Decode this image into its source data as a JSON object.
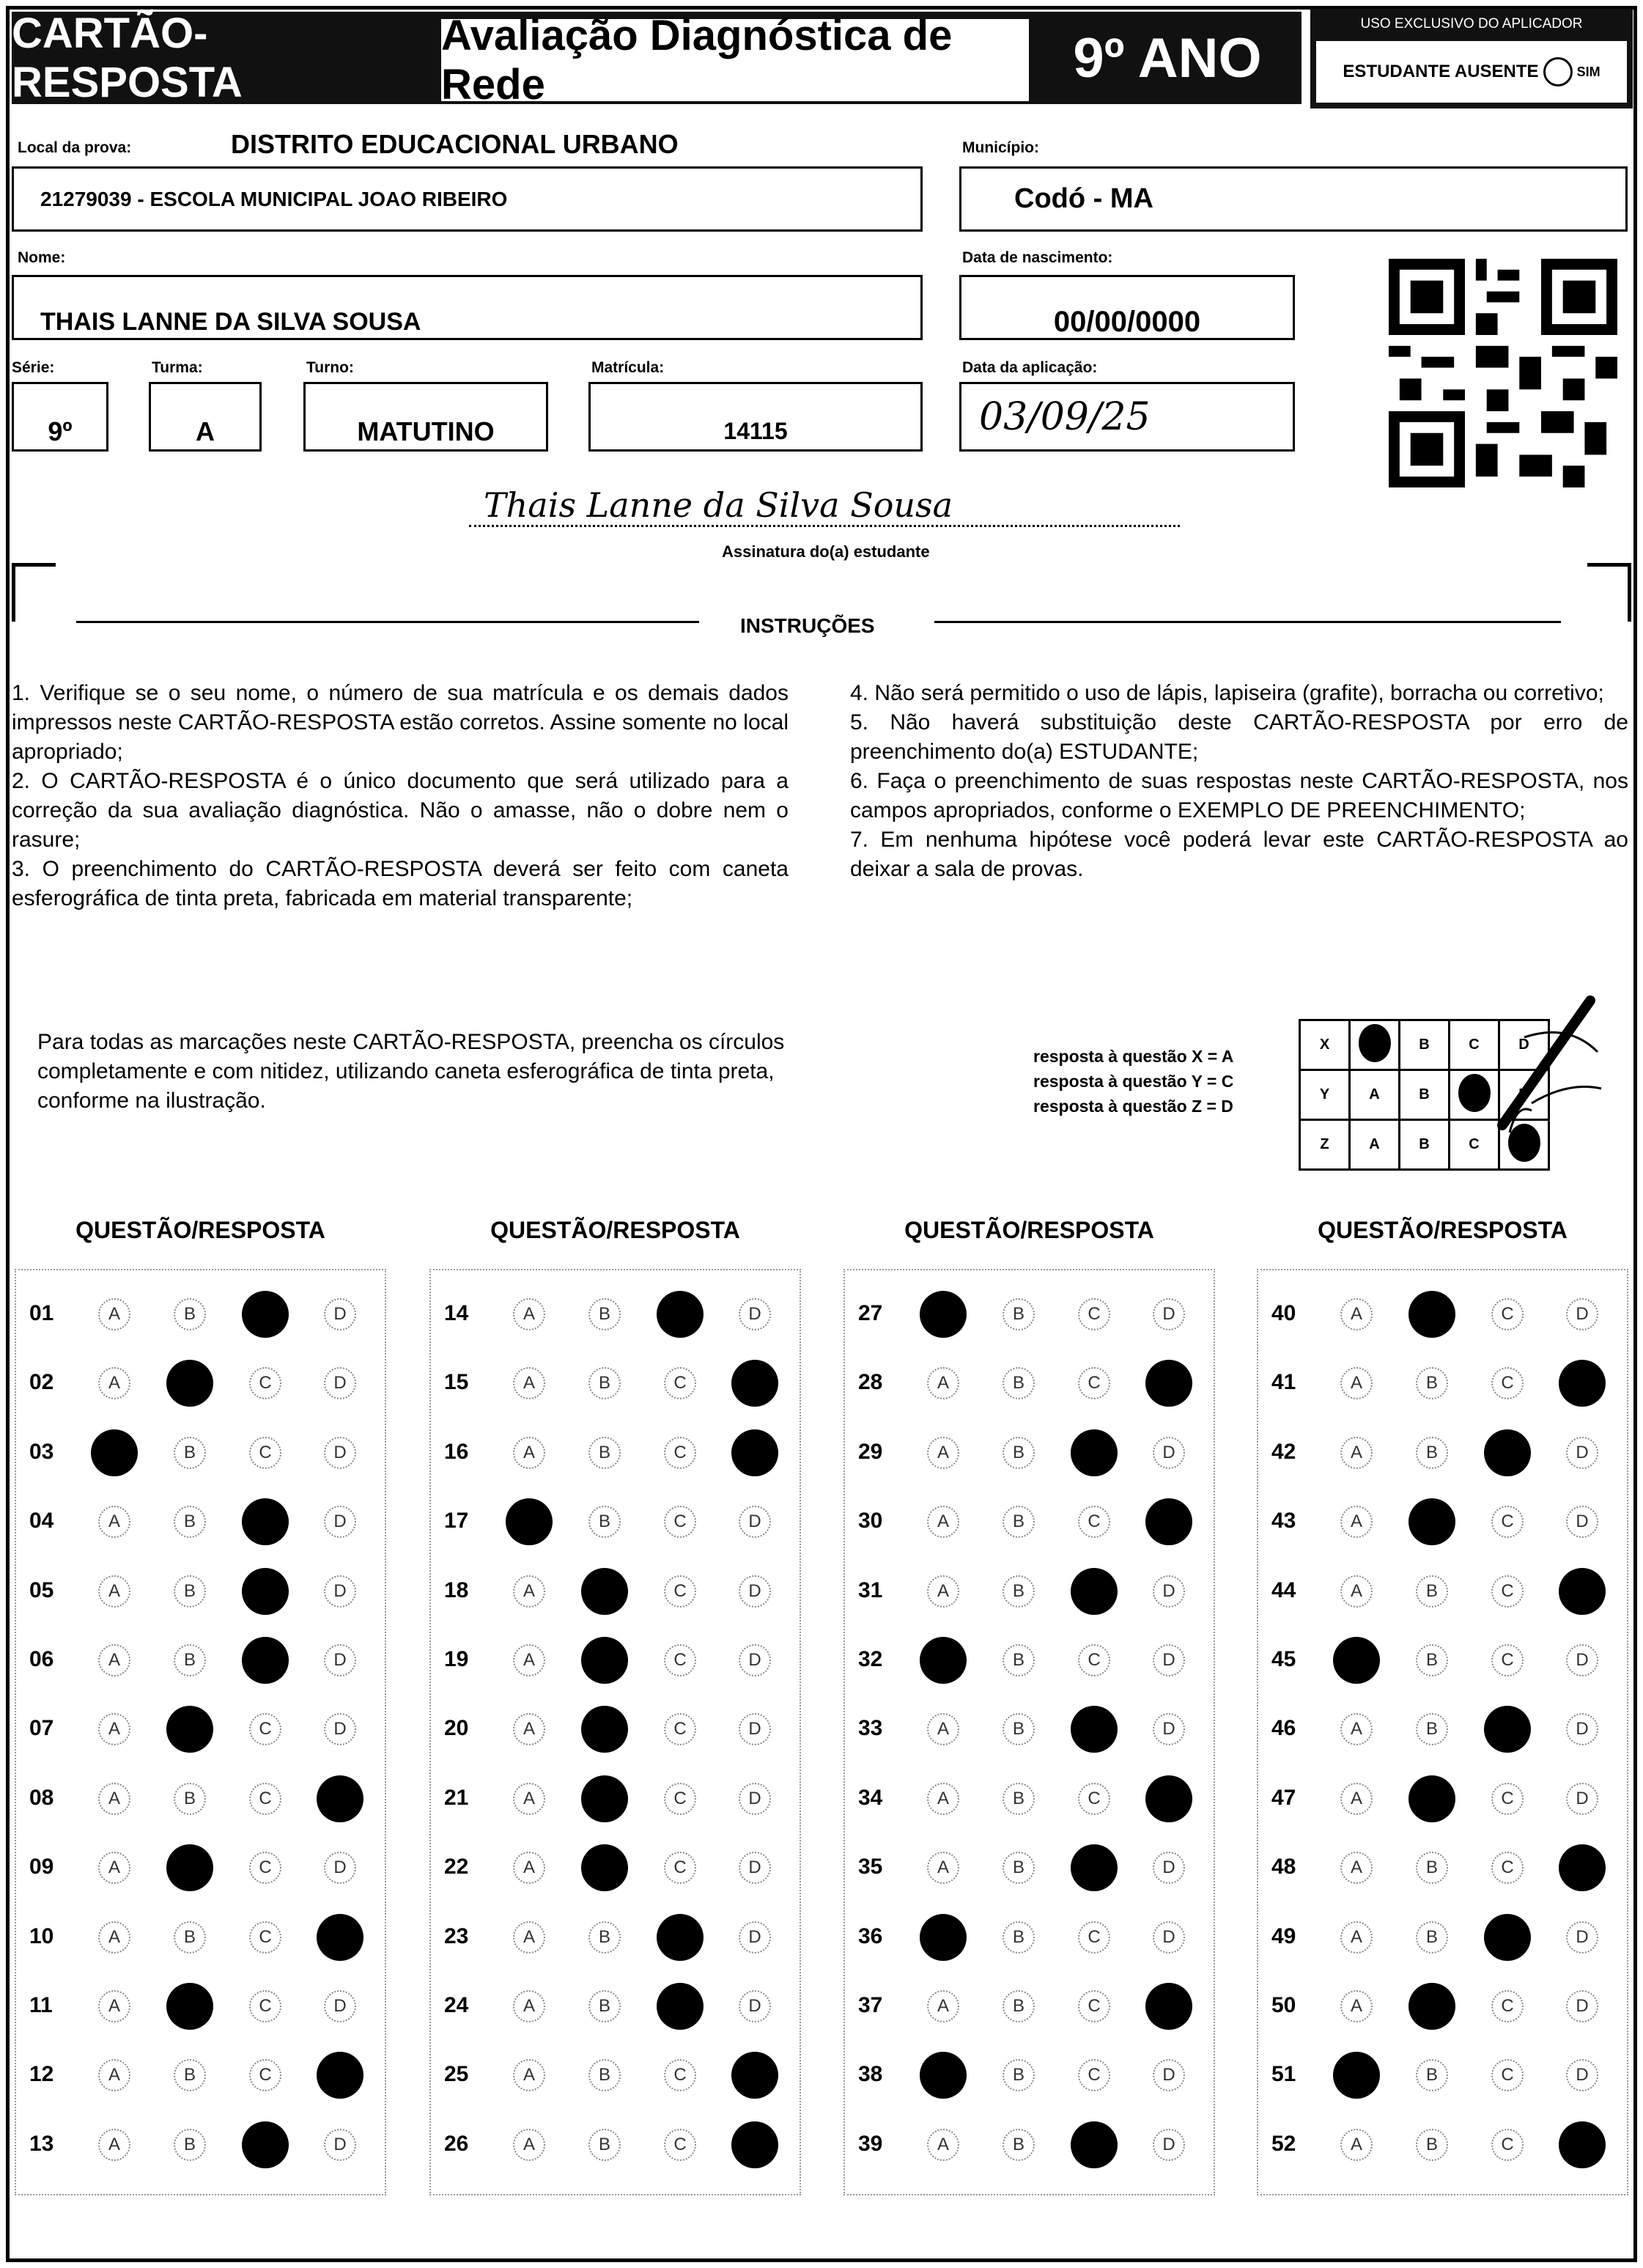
{
  "header": {
    "title": "CARTÃO-RESPOSTA",
    "subtitle": "Avaliação Diagnóstica de Rede",
    "grade": "9º ANO",
    "applicator_label": "USO EXCLUSIVO DO APLICADOR",
    "absent_label": "ESTUDANTE AUSENTE",
    "absent_option": "SIM"
  },
  "fields": {
    "local_label": "Local da prova:",
    "local_district": "DISTRITO EDUCACIONAL URBANO",
    "local_value": "21279039 - ESCOLA MUNICIPAL JOAO RIBEIRO",
    "municipio_label": "Município:",
    "municipio_value": "Codó - MA",
    "nome_label": "Nome:",
    "nome_value": "THAIS LANNE DA SILVA SOUSA",
    "nascimento_label": "Data de nascimento:",
    "nascimento_value": "00/00/0000",
    "serie_label": "Série:",
    "serie_value": "9º",
    "turma_label": "Turma:",
    "turma_value": "A",
    "turno_label": "Turno:",
    "turno_value": "MATUTINO",
    "matricula_label": "Matrícula:",
    "matricula_value": "14115",
    "aplicacao_label": "Data da aplicação:",
    "aplicacao_value": "03/09/25"
  },
  "signature": {
    "value": "Thais Lanne da Silva Sousa",
    "label": "Assinatura do(a) estudante"
  },
  "instructions": {
    "title": "INSTRUÇÕES",
    "left": "1. Verifique se o seu nome, o número de sua matrícula e os demais dados impressos neste CARTÃO-RESPOSTA estão corretos. Assine somente no local apropriado;\n2. O CARTÃO-RESPOSTA é o único documento que será utilizado para a correção da sua avaliação diagnóstica. Não o amasse, não o dobre nem o rasure;\n3. O preenchimento do CARTÃO-RESPOSTA deverá ser feito com caneta esferográfica de tinta preta, fabricada em material transparente;",
    "right": "4. Não será permitido o uso de lápis, lapiseira (grafite), borracha ou corretivo;\n5. Não haverá substituição deste CARTÃO-RESPOSTA por erro de preenchimento do(a) ESTUDANTE;\n6. Faça o preenchimento de suas respostas neste CARTÃO-RESPOSTA, nos campos apropriados, conforme o EXEMPLO DE PREENCHIMENTO;\n7. Em nenhuma hipótese você poderá levar este CARTÃO-RESPOSTA ao deixar a sala de provas."
  },
  "marking": {
    "text": "Para todas as marcações neste CARTÃO-RESPOSTA, preencha os círculos completamente e com nitidez, utilizando caneta esferográfica de tinta preta, conforme na ilustração.",
    "examples": [
      {
        "q": "X",
        "answer": "A",
        "text": "resposta à questão X = A"
      },
      {
        "q": "Y",
        "answer": "C",
        "text": "resposta à questão Y = C"
      },
      {
        "q": "Z",
        "answer": "D",
        "text": "resposta à questão Z = D"
      }
    ]
  },
  "options": [
    "A",
    "B",
    "C",
    "D"
  ],
  "column_header": "QUESTÃO/RESPOSTA",
  "columns": [
    [
      [
        "01",
        "C"
      ],
      [
        "02",
        "B"
      ],
      [
        "03",
        "A"
      ],
      [
        "04",
        "C"
      ],
      [
        "05",
        "C"
      ],
      [
        "06",
        "C"
      ],
      [
        "07",
        "B"
      ],
      [
        "08",
        "D"
      ],
      [
        "09",
        "B"
      ],
      [
        "10",
        "D"
      ],
      [
        "11",
        "B"
      ],
      [
        "12",
        "D"
      ],
      [
        "13",
        "C"
      ]
    ],
    [
      [
        "14",
        "C"
      ],
      [
        "15",
        "D"
      ],
      [
        "16",
        "D"
      ],
      [
        "17",
        "A"
      ],
      [
        "18",
        "B"
      ],
      [
        "19",
        "B"
      ],
      [
        "20",
        "B"
      ],
      [
        "21",
        "B"
      ],
      [
        "22",
        "B"
      ],
      [
        "23",
        "C"
      ],
      [
        "24",
        "C"
      ],
      [
        "25",
        "D"
      ],
      [
        "26",
        "D"
      ]
    ],
    [
      [
        "27",
        "A"
      ],
      [
        "28",
        "D"
      ],
      [
        "29",
        "C"
      ],
      [
        "30",
        "D"
      ],
      [
        "31",
        "C"
      ],
      [
        "32",
        "A"
      ],
      [
        "33",
        "C"
      ],
      [
        "34",
        "D"
      ],
      [
        "35",
        "C"
      ],
      [
        "36",
        "A"
      ],
      [
        "37",
        "D"
      ],
      [
        "38",
        "A"
      ],
      [
        "39",
        "C"
      ]
    ],
    [
      [
        "40",
        "B"
      ],
      [
        "41",
        "D"
      ],
      [
        "42",
        "C"
      ],
      [
        "43",
        "B"
      ],
      [
        "44",
        "D"
      ],
      [
        "45",
        "A"
      ],
      [
        "46",
        "C"
      ],
      [
        "47",
        "B"
      ],
      [
        "48",
        "D"
      ],
      [
        "49",
        "C"
      ],
      [
        "50",
        "B"
      ],
      [
        "51",
        "A"
      ],
      [
        "52",
        "D"
      ]
    ]
  ]
}
